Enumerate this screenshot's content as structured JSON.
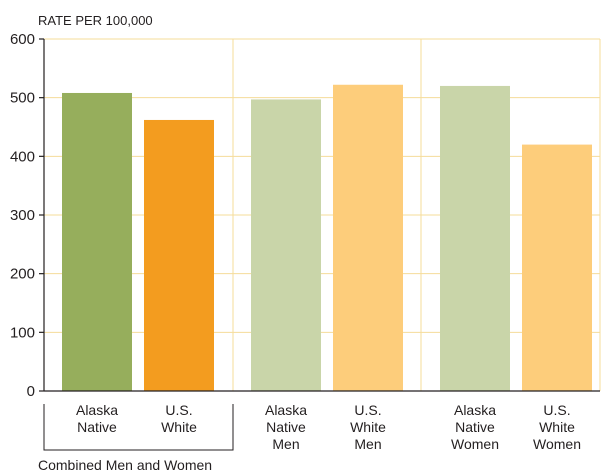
{
  "chart_data": {
    "type": "bar",
    "ylabel": "RATE PER 100,000",
    "ylim": [
      0,
      600
    ],
    "yticks": [
      0,
      100,
      200,
      300,
      400,
      500,
      600
    ],
    "grid": true,
    "bars": [
      {
        "label": [
          "Alaska",
          "Native"
        ],
        "value": 508,
        "color": "#96ae5c"
      },
      {
        "label": [
          "U.S.",
          "White"
        ],
        "value": 462,
        "color": "#f39c1f"
      },
      {
        "label": [
          "Alaska",
          "Native",
          "Men"
        ],
        "value": 497,
        "color": "#c9d5a9"
      },
      {
        "label": [
          "U.S.",
          "White",
          "Men"
        ],
        "value": 522,
        "color": "#fdcd7b"
      },
      {
        "label": [
          "Alaska",
          "Native",
          "Women"
        ],
        "value": 520,
        "color": "#c9d5a9"
      },
      {
        "label": [
          "U.S.",
          "White",
          "Women"
        ],
        "value": 420,
        "color": "#fdcd7b"
      }
    ],
    "group_label": "Combined Men and Women"
  },
  "colors": {
    "grid": "#f5dc9a",
    "axis": "#231f20",
    "alaska_native_combined": "#96ae5c",
    "us_white_combined": "#f39c1f",
    "alaska_native_light": "#c9d5a9",
    "us_white_light": "#fdcd7b"
  }
}
